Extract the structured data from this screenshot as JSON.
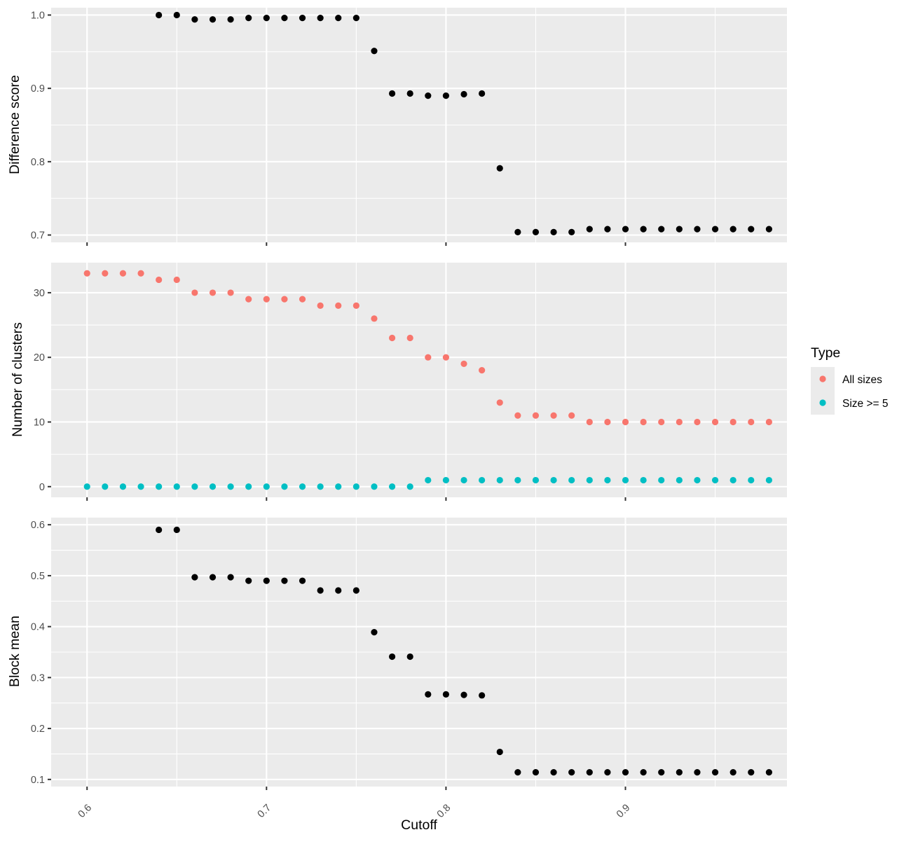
{
  "chart_data": {
    "type": "scatter",
    "x_axis": {
      "label": "Cutoff",
      "ticks": [
        0.6,
        0.7,
        0.8,
        0.9
      ],
      "tick_labels": [
        "0.6",
        "0.7",
        "0.8",
        "0.9"
      ],
      "range": [
        0.58,
        0.99
      ],
      "tick_label_rotation_deg": 45
    },
    "legend": {
      "title": "Type",
      "placement": "right",
      "entries": [
        {
          "label": "All sizes",
          "color": "#F8766D"
        },
        {
          "label": "Size >= 5",
          "color": "#00BFC4"
        }
      ]
    },
    "grid": true,
    "panels": [
      {
        "ylabel": "Difference score",
        "ylim": [
          0.69,
          1.01
        ],
        "yticks": [
          0.7,
          0.8,
          0.9,
          1.0
        ],
        "ytick_labels": [
          "0.7",
          "0.8",
          "0.9",
          "1.0"
        ],
        "series": [
          {
            "color": "#000000",
            "x": [
              0.64,
              0.65,
              0.66,
              0.67,
              0.68,
              0.69,
              0.7,
              0.71,
              0.72,
              0.73,
              0.74,
              0.75,
              0.76,
              0.77,
              0.78,
              0.79,
              0.8,
              0.81,
              0.82,
              0.83,
              0.84,
              0.85,
              0.86,
              0.87,
              0.88,
              0.89,
              0.9,
              0.91,
              0.92,
              0.93,
              0.94,
              0.95,
              0.96,
              0.97,
              0.98
            ],
            "y": [
              1.0,
              1.0,
              0.994,
              0.994,
              0.994,
              0.996,
              0.996,
              0.996,
              0.996,
              0.996,
              0.996,
              0.996,
              0.951,
              0.893,
              0.893,
              0.89,
              0.89,
              0.892,
              0.893,
              0.791,
              0.704,
              0.704,
              0.704,
              0.704,
              0.708,
              0.708,
              0.708,
              0.708,
              0.708,
              0.708,
              0.708,
              0.708,
              0.708,
              0.708,
              0.708
            ]
          }
        ]
      },
      {
        "ylabel": "Number of clusters",
        "ylim": [
          -1.65,
          34.65
        ],
        "yticks": [
          0,
          10,
          20,
          30
        ],
        "ytick_labels": [
          "0",
          "10",
          "20",
          "30"
        ],
        "series": [
          {
            "name": "All sizes",
            "color": "#F8766D",
            "x": [
              0.6,
              0.61,
              0.62,
              0.63,
              0.64,
              0.65,
              0.66,
              0.67,
              0.68,
              0.69,
              0.7,
              0.71,
              0.72,
              0.73,
              0.74,
              0.75,
              0.76,
              0.77,
              0.78,
              0.79,
              0.8,
              0.81,
              0.82,
              0.83,
              0.84,
              0.85,
              0.86,
              0.87,
              0.88,
              0.89,
              0.9,
              0.91,
              0.92,
              0.93,
              0.94,
              0.95,
              0.96,
              0.97,
              0.98
            ],
            "y": [
              33,
              33,
              33,
              33,
              32,
              32,
              30,
              30,
              30,
              29,
              29,
              29,
              29,
              28,
              28,
              28,
              26,
              23,
              23,
              20,
              20,
              19,
              18,
              13,
              11,
              11,
              11,
              11,
              10,
              10,
              10,
              10,
              10,
              10,
              10,
              10,
              10,
              10,
              10
            ]
          },
          {
            "name": "Size >= 5",
            "color": "#00BFC4",
            "x": [
              0.6,
              0.61,
              0.62,
              0.63,
              0.64,
              0.65,
              0.66,
              0.67,
              0.68,
              0.69,
              0.7,
              0.71,
              0.72,
              0.73,
              0.74,
              0.75,
              0.76,
              0.77,
              0.78,
              0.79,
              0.8,
              0.81,
              0.82,
              0.83,
              0.84,
              0.85,
              0.86,
              0.87,
              0.88,
              0.89,
              0.9,
              0.91,
              0.92,
              0.93,
              0.94,
              0.95,
              0.96,
              0.97,
              0.98
            ],
            "y": [
              0,
              0,
              0,
              0,
              0,
              0,
              0,
              0,
              0,
              0,
              0,
              0,
              0,
              0,
              0,
              0,
              0,
              0,
              0,
              1,
              1,
              1,
              1,
              1,
              1,
              1,
              1,
              1,
              1,
              1,
              1,
              1,
              1,
              1,
              1,
              1,
              1,
              1,
              1
            ]
          }
        ]
      },
      {
        "ylabel": "Block mean",
        "ylim": [
          0.086,
          0.614
        ],
        "yticks": [
          0.1,
          0.2,
          0.3,
          0.4,
          0.5,
          0.6
        ],
        "ytick_labels": [
          "0.1",
          "0.2",
          "0.3",
          "0.4",
          "0.5",
          "0.6"
        ],
        "series": [
          {
            "color": "#000000",
            "x": [
              0.64,
              0.65,
              0.66,
              0.67,
              0.68,
              0.69,
              0.7,
              0.71,
              0.72,
              0.73,
              0.74,
              0.75,
              0.76,
              0.77,
              0.78,
              0.79,
              0.8,
              0.81,
              0.82,
              0.83,
              0.84,
              0.85,
              0.86,
              0.87,
              0.88,
              0.89,
              0.9,
              0.91,
              0.92,
              0.93,
              0.94,
              0.95,
              0.96,
              0.97,
              0.98
            ],
            "y": [
              0.59,
              0.59,
              0.497,
              0.497,
              0.497,
              0.49,
              0.49,
              0.49,
              0.49,
              0.471,
              0.471,
              0.471,
              0.389,
              0.341,
              0.341,
              0.267,
              0.267,
              0.266,
              0.265,
              0.154,
              0.114,
              0.114,
              0.114,
              0.114,
              0.114,
              0.114,
              0.114,
              0.114,
              0.114,
              0.114,
              0.114,
              0.114,
              0.114,
              0.114,
              0.114
            ]
          }
        ]
      }
    ]
  }
}
